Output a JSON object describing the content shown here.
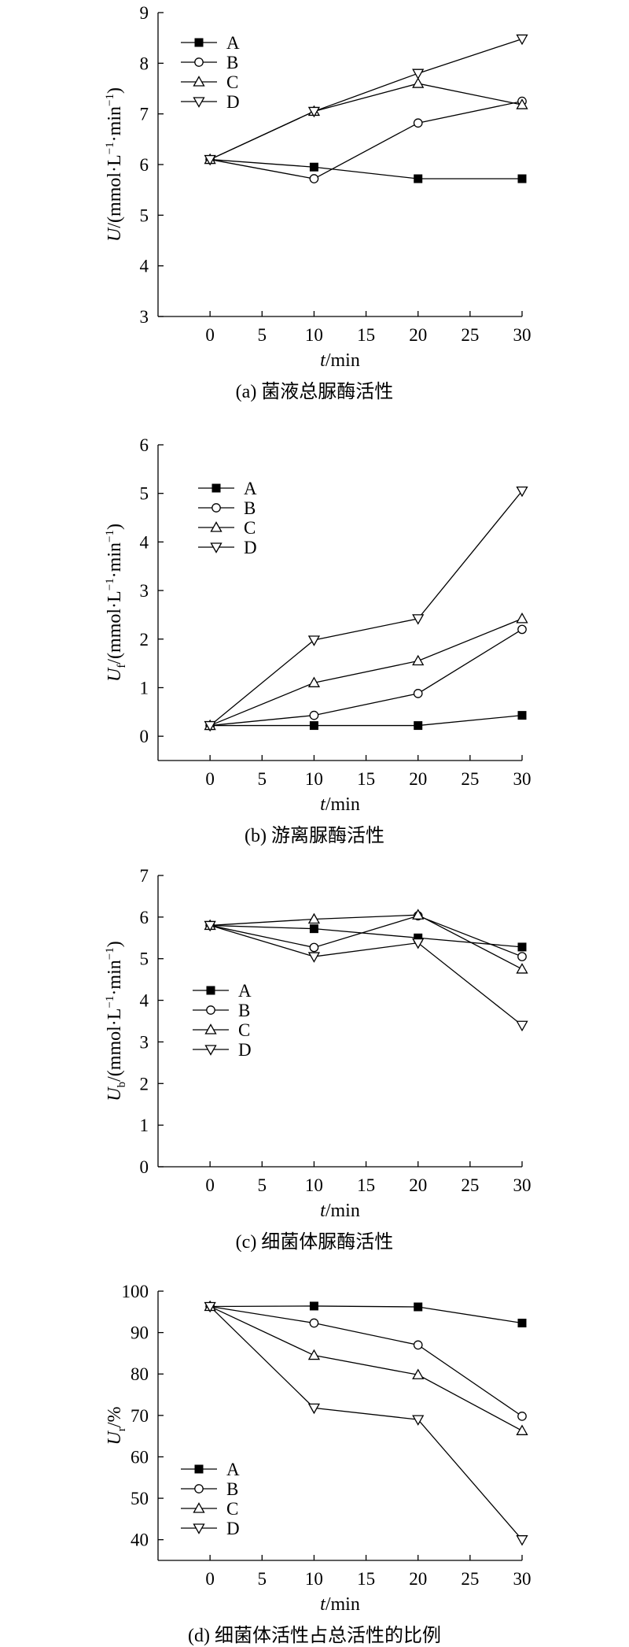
{
  "chart_data": [
    {
      "type": "line",
      "caption": "(a) 菌液总脲酶活性",
      "ylabel": {
        "main": "U",
        "sub": "",
        "unit": "/(mmol·L",
        "unit_sup1": "−1",
        "unit_mid": "·min",
        "unit_sup2": "−1",
        "unit_close": ")"
      },
      "xlabel": {
        "main": "t",
        "unit": "/min"
      },
      "xlim": [
        -5,
        30
      ],
      "ylim": [
        3,
        9
      ],
      "xticks": [
        0,
        5,
        10,
        15,
        20,
        25,
        30
      ],
      "yticks": [
        3,
        4,
        5,
        6,
        7,
        8,
        9
      ],
      "legend": "top-left",
      "x": [
        0,
        10,
        20,
        30
      ],
      "series": [
        {
          "name": "A",
          "marker": "square",
          "values": [
            6.1,
            5.95,
            5.72,
            5.72
          ]
        },
        {
          "name": "B",
          "marker": "circle",
          "values": [
            6.1,
            5.72,
            6.82,
            7.25
          ]
        },
        {
          "name": "C",
          "marker": "tri-up",
          "values": [
            6.1,
            7.05,
            7.6,
            7.18
          ]
        },
        {
          "name": "D",
          "marker": "tri-down",
          "values": [
            6.1,
            7.05,
            7.8,
            8.48
          ]
        }
      ]
    },
    {
      "type": "line",
      "caption": "(b) 游离脲酶活性",
      "ylabel": {
        "main": "U",
        "sub": "f",
        "unit": "/(mmol·L",
        "unit_sup1": "−1",
        "unit_mid": "·min",
        "unit_sup2": "−1",
        "unit_close": ")"
      },
      "xlabel": {
        "main": "t",
        "unit": "/min"
      },
      "xlim": [
        -5,
        30
      ],
      "ylim": [
        -0.5,
        6
      ],
      "xticks": [
        0,
        5,
        10,
        15,
        20,
        25,
        30
      ],
      "yticks": [
        0,
        1,
        2,
        3,
        4,
        5,
        6
      ],
      "legend": "top-left",
      "x": [
        0,
        10,
        20,
        30
      ],
      "series": [
        {
          "name": "A",
          "marker": "square",
          "values": [
            0.22,
            0.22,
            0.22,
            0.43
          ]
        },
        {
          "name": "B",
          "marker": "circle",
          "values": [
            0.22,
            0.43,
            0.88,
            2.2
          ]
        },
        {
          "name": "C",
          "marker": "tri-up",
          "values": [
            0.22,
            1.1,
            1.55,
            2.42
          ]
        },
        {
          "name": "D",
          "marker": "tri-down",
          "values": [
            0.22,
            1.98,
            2.42,
            5.05
          ]
        }
      ]
    },
    {
      "type": "line",
      "caption": "(c) 细菌体脲酶活性",
      "ylabel": {
        "main": "U",
        "sub": "b",
        "unit": "/(mmol·L",
        "unit_sup1": "−1",
        "unit_mid": "·min",
        "unit_sup2": "−1",
        "unit_close": ")"
      },
      "xlabel": {
        "main": "t",
        "unit": "/min"
      },
      "xlim": [
        -5,
        30
      ],
      "ylim": [
        0,
        7
      ],
      "xticks": [
        0,
        5,
        10,
        15,
        20,
        25,
        30
      ],
      "yticks": [
        0,
        1,
        2,
        3,
        4,
        5,
        6,
        7
      ],
      "legend": "middle-left",
      "x": [
        0,
        10,
        20,
        30
      ],
      "series": [
        {
          "name": "A",
          "marker": "square",
          "values": [
            5.8,
            5.72,
            5.5,
            5.28
          ]
        },
        {
          "name": "B",
          "marker": "circle",
          "values": [
            5.8,
            5.27,
            6.03,
            5.05
          ]
        },
        {
          "name": "C",
          "marker": "tri-up",
          "values": [
            5.8,
            5.95,
            6.05,
            4.75
          ]
        },
        {
          "name": "D",
          "marker": "tri-down",
          "values": [
            5.8,
            5.05,
            5.38,
            3.4
          ]
        }
      ]
    },
    {
      "type": "line",
      "caption": "(d) 细菌体活性占总活性的比例",
      "ylabel": {
        "main": "U",
        "sub": "r",
        "unit": "/%",
        "unit_sup1": "",
        "unit_mid": "",
        "unit_sup2": "",
        "unit_close": ""
      },
      "xlabel": {
        "main": "t",
        "unit": "/min"
      },
      "xlim": [
        -5,
        30
      ],
      "ylim": [
        35,
        100
      ],
      "xticks": [
        0,
        5,
        10,
        15,
        20,
        25,
        30
      ],
      "yticks": [
        40,
        50,
        60,
        70,
        80,
        90,
        100
      ],
      "legend": "bottom-left",
      "x": [
        0,
        10,
        20,
        30
      ],
      "series": [
        {
          "name": "A",
          "marker": "square",
          "values": [
            96.3,
            96.4,
            96.2,
            92.3
          ]
        },
        {
          "name": "B",
          "marker": "circle",
          "values": [
            96.3,
            92.3,
            87.0,
            69.8
          ]
        },
        {
          "name": "C",
          "marker": "tri-up",
          "values": [
            96.3,
            84.5,
            79.8,
            66.3
          ]
        },
        {
          "name": "D",
          "marker": "tri-down",
          "values": [
            96.3,
            71.8,
            69.0,
            40.0
          ]
        }
      ]
    }
  ]
}
